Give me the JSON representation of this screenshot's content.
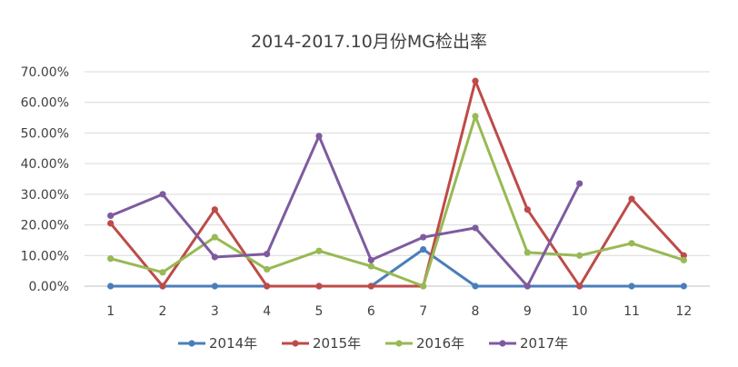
{
  "chart_data": {
    "type": "line",
    "title": "2014-2017.10月份MG检出率",
    "xlabel": "",
    "ylabel": "",
    "categories": [
      "1",
      "2",
      "3",
      "4",
      "5",
      "6",
      "7",
      "8",
      "9",
      "10",
      "11",
      "12"
    ],
    "y_tick_labels": [
      "0.00%",
      "10.00%",
      "20.00%",
      "30.00%",
      "40.00%",
      "50.00%",
      "60.00%",
      "70.00%"
    ],
    "ylim": [
      0,
      70
    ],
    "y_unit": "%",
    "grid": true,
    "legend_position": "bottom",
    "series": [
      {
        "name": "2014年",
        "color": "#4a7ebb",
        "values": [
          0,
          0,
          0,
          0,
          0,
          0,
          12,
          0,
          0,
          0,
          0,
          0
        ]
      },
      {
        "name": "2015年",
        "color": "#be4b48",
        "values": [
          20.5,
          0,
          25,
          0,
          0,
          0,
          0,
          67,
          25,
          0,
          28.5,
          10
        ]
      },
      {
        "name": "2016年",
        "color": "#98b954",
        "values": [
          9,
          4.5,
          16,
          5.5,
          11.5,
          6.5,
          0,
          55.5,
          11,
          10,
          14,
          8.5
        ]
      },
      {
        "name": "2017年",
        "color": "#7e5b9f",
        "values": [
          23,
          30,
          9.5,
          10.5,
          49,
          8.5,
          16,
          19,
          0,
          33.5,
          null,
          null
        ]
      }
    ]
  }
}
